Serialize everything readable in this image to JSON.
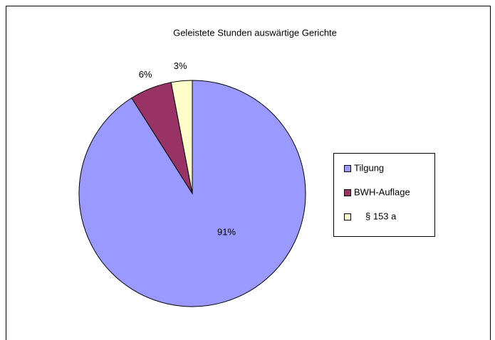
{
  "chart_data": {
    "type": "pie",
    "title": "Geleistete Stunden auswärtige Gerichte",
    "categories": [
      "Tilgung",
      "BWH-Auflage",
      "§ 153 a"
    ],
    "values": [
      91,
      6,
      3
    ],
    "value_labels": [
      "91%",
      "6%",
      "3%"
    ],
    "colors": [
      "#9999ff",
      "#993366",
      "#ffffcc"
    ],
    "legend": "right"
  }
}
